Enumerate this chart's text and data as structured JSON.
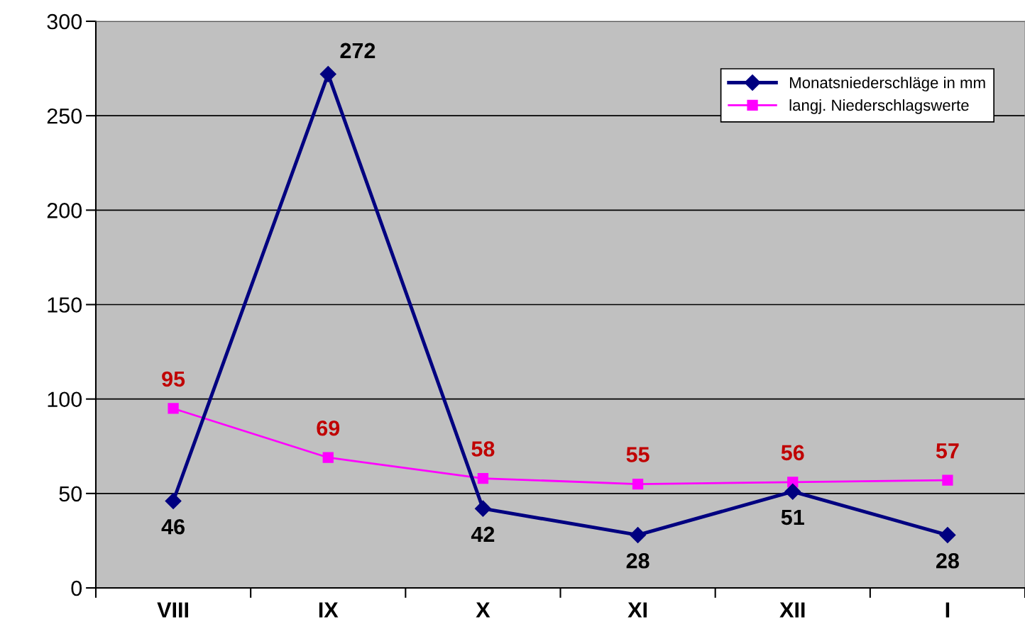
{
  "chart_data": {
    "type": "line",
    "categories": [
      "VIII",
      "IX",
      "X",
      "XI",
      "XII",
      "I"
    ],
    "series": [
      {
        "name": "Monatsniederschläge in mm",
        "color": "#000080",
        "marker": "diamond",
        "values": [
          46,
          272,
          42,
          28,
          51,
          28
        ]
      },
      {
        "name": "langj. Niederschlagswerte",
        "color": "#ff00ff",
        "marker": "square",
        "values": [
          95,
          69,
          58,
          55,
          56,
          57
        ]
      }
    ],
    "ylim": [
      0,
      300
    ],
    "yticks": [
      0,
      50,
      100,
      150,
      200,
      250,
      300
    ],
    "grid": "y",
    "legend": "top right",
    "data_labels": true,
    "line_style": "solid"
  }
}
